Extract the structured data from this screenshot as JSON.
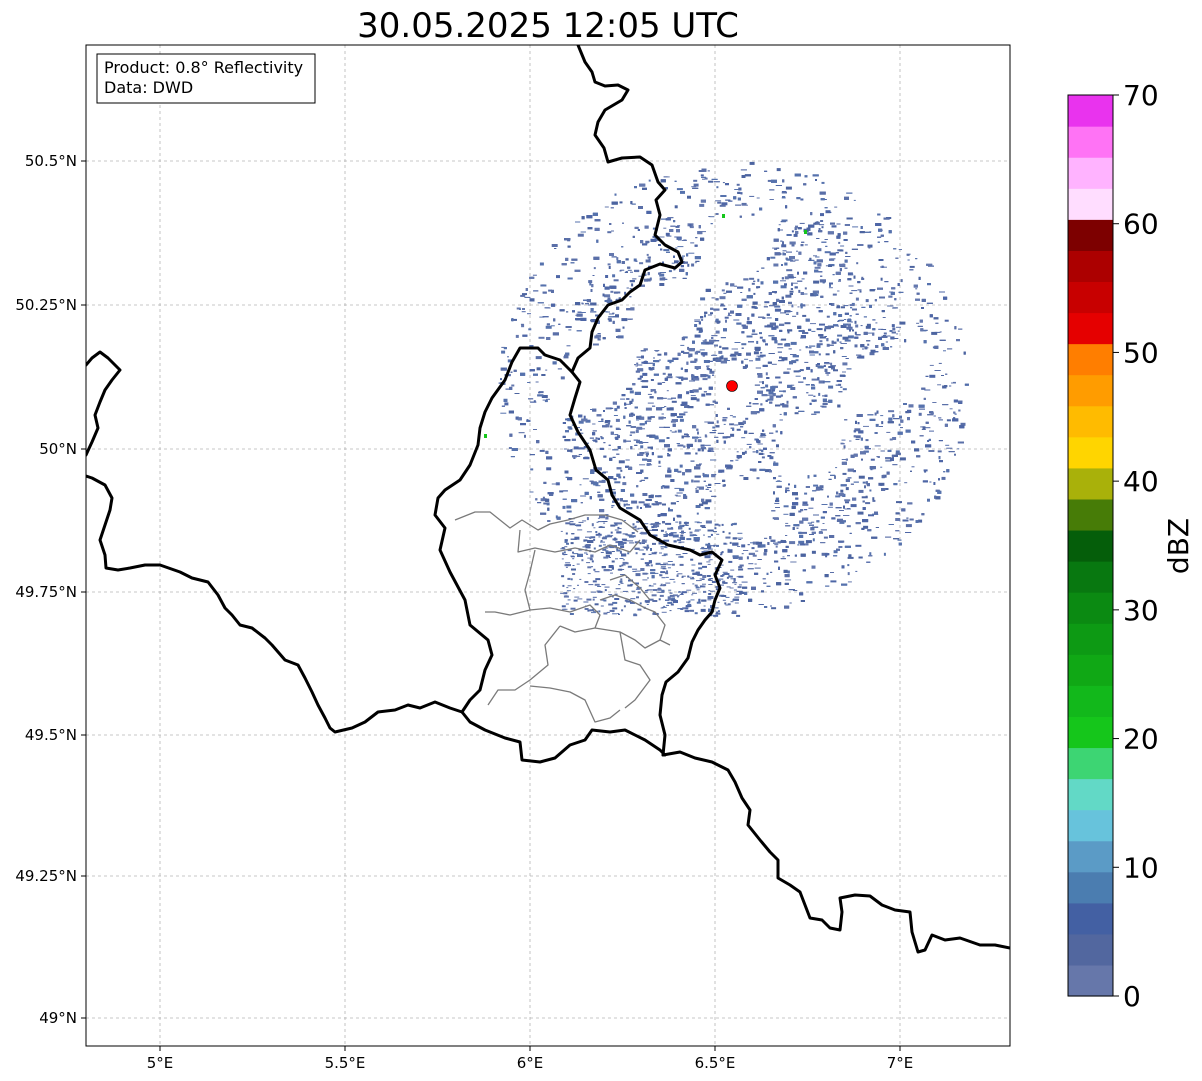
{
  "title": "30.05.2025 12:05 UTC",
  "info_box": {
    "product_line": "Product: 0.8° Reflectivity",
    "data_line": "Data: DWD"
  },
  "axes": {
    "x_ticks": [
      "5°E",
      "5.5°E",
      "6°E",
      "6.5°E",
      "7°E"
    ],
    "y_ticks": [
      "50.5°N",
      "50.25°N",
      "50°N",
      "49.75°N",
      "49.5°N",
      "49.25°N",
      "49°N"
    ]
  },
  "colorbar": {
    "label": "dBZ",
    "ticks": [
      "0",
      "10",
      "20",
      "30",
      "40",
      "50",
      "60",
      "70"
    ],
    "colors": [
      "#6677aa",
      "#52679f",
      "#4360a3",
      "#4b7db0",
      "#5b9bc6",
      "#67c3dc",
      "#62d9c6",
      "#3dd573",
      "#15c61b",
      "#12b81b",
      "#10a815",
      "#0d9a14",
      "#0b8a12",
      "#087810",
      "#055e0a",
      "#477c07",
      "#a9b10a",
      "#ffd500",
      "#ffbb00",
      "#ff9c00",
      "#ff7e00",
      "#e50000",
      "#c80000",
      "#ac0000",
      "#7d0000",
      "#ffddff",
      "#ffb3ff",
      "#ff73f5",
      "#e933ee"
    ]
  },
  "radar_site_color": "#ff0000",
  "echo_color": "#5a6fa8"
}
